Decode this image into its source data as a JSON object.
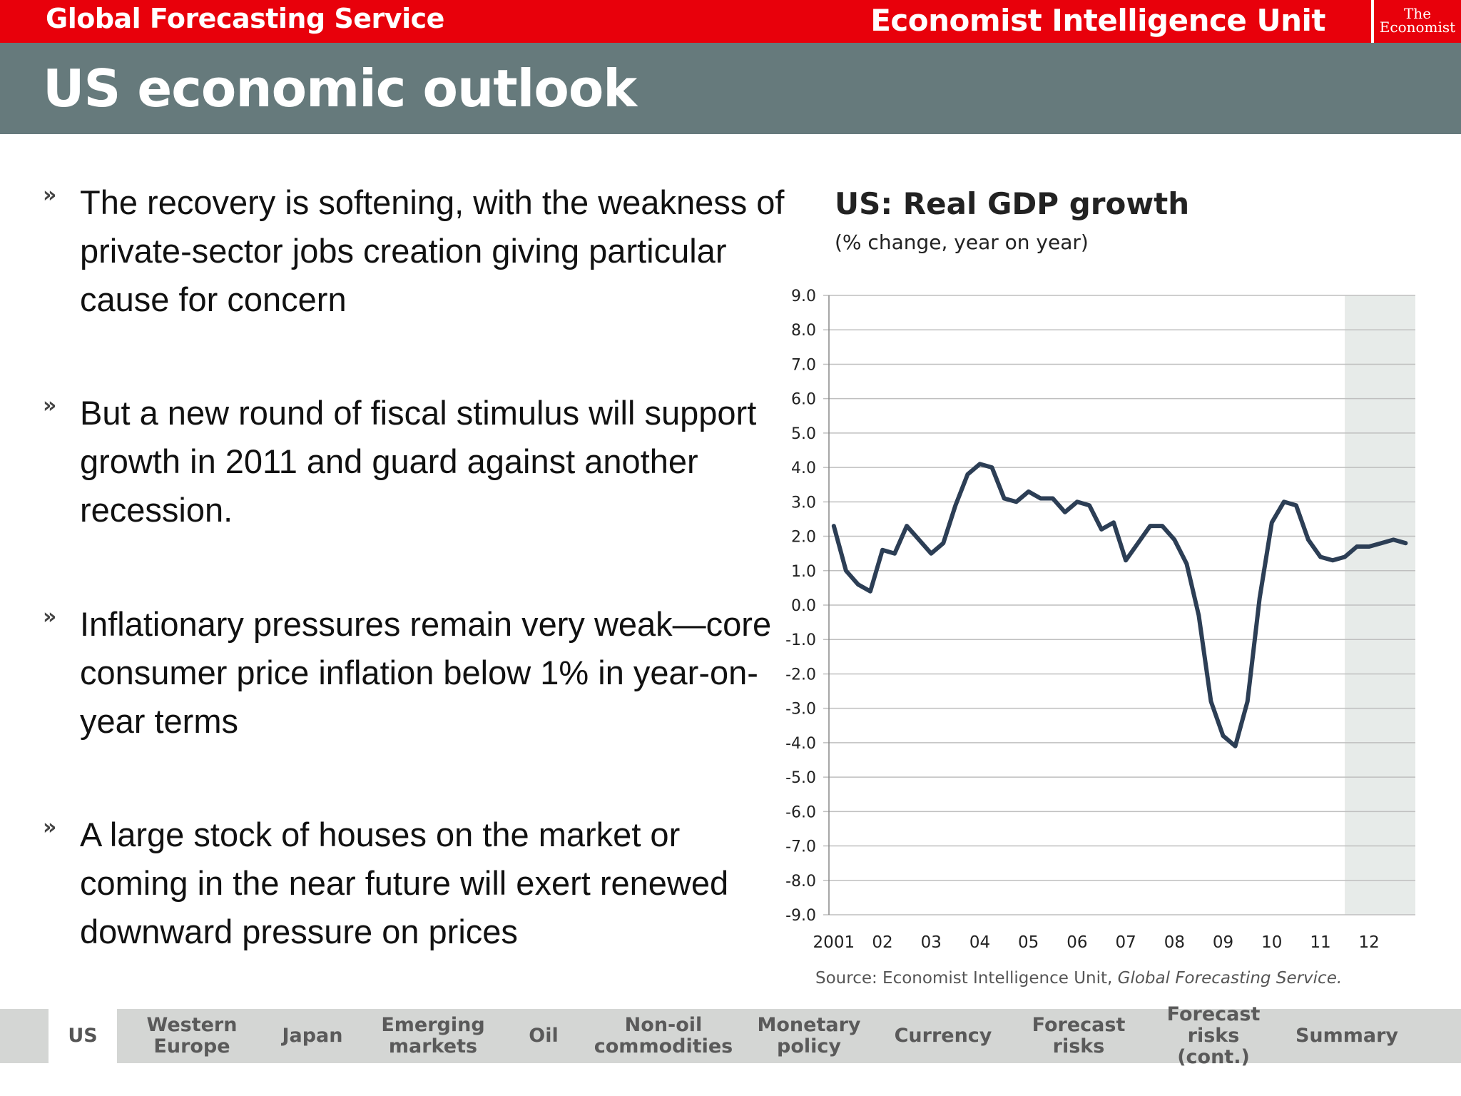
{
  "header": {
    "service": "Global Forecasting Service",
    "brand": "Economist Intelligence Unit",
    "logo_line1": "The",
    "logo_line2": "Economist"
  },
  "page_title": "US economic outlook",
  "bullets": [
    "The recovery is softening, with the weakness of private-sector jobs creation giving particular cause for concern",
    "But a new round of fiscal stimulus will support growth in 2011 and guard against another recession.",
    "Inflationary pressures remain very weak—core consumer price inflation below 1% in year-on-year terms",
    "A large stock of houses on the market or coming in the near future will exert renewed downward pressure on prices"
  ],
  "bullet_marker": "»",
  "chart_data": {
    "type": "line",
    "title": "US: Real GDP growth",
    "subtitle": "(% change, year on year)",
    "source_prefix": "Source: Economist Intelligence Unit, ",
    "source_italic": "Global Forecasting Service.",
    "ylim": [
      -9,
      9
    ],
    "yticks": [
      "9.0",
      "8.0",
      "7.0",
      "6.0",
      "5.0",
      "4.0",
      "3.0",
      "2.0",
      "1.0",
      "0.0",
      "-1.0",
      "-2.0",
      "-3.0",
      "-4.0",
      "-5.0",
      "-6.0",
      "-7.0",
      "-8.0",
      "-9.0"
    ],
    "xtick_labels": [
      "2001",
      "02",
      "03",
      "04",
      "05",
      "06",
      "07",
      "08",
      "09",
      "10",
      "11",
      "12"
    ],
    "grid": "horizontal",
    "forecast_shading_from": 2011.5,
    "colors": {
      "line": "#2c3e55",
      "forecast_band": "#e7ebe9",
      "grid": "#bfbfbf"
    },
    "series": [
      {
        "x": [
          2001.0,
          2001.25,
          2001.5,
          2001.75,
          2002.0,
          2002.25,
          2002.5,
          2002.75,
          2003.0,
          2003.25,
          2003.5,
          2003.75,
          2004.0,
          2004.25,
          2004.5,
          2004.75,
          2005.0,
          2005.25,
          2005.5,
          2005.75,
          2006.0,
          2006.25,
          2006.5,
          2006.75,
          2007.0,
          2007.25,
          2007.5,
          2007.75,
          2008.0,
          2008.25,
          2008.5,
          2008.75,
          2009.0,
          2009.25,
          2009.5,
          2009.75,
          2010.0,
          2010.25,
          2010.5,
          2010.75,
          2011.0,
          2011.25,
          2011.5,
          2011.75,
          2012.0,
          2012.25,
          2012.5,
          2012.75
        ],
        "y": [
          2.3,
          1.0,
          0.6,
          0.4,
          1.6,
          1.5,
          2.3,
          1.9,
          1.5,
          1.8,
          2.9,
          3.8,
          4.1,
          4.0,
          3.1,
          3.0,
          3.3,
          3.1,
          3.1,
          2.7,
          3.0,
          2.9,
          2.2,
          2.4,
          1.3,
          1.8,
          2.3,
          2.3,
          1.9,
          1.2,
          -0.3,
          -2.8,
          -3.8,
          -4.1,
          -2.8,
          0.2,
          2.4,
          3.0,
          2.9,
          1.9,
          1.4,
          1.3,
          1.4,
          1.7,
          1.7,
          1.8,
          1.9,
          1.8
        ]
      }
    ]
  },
  "nav": [
    {
      "label": "US",
      "active": true
    },
    {
      "label": "Western\nEurope",
      "active": false
    },
    {
      "label": "Japan",
      "active": false
    },
    {
      "label": "Emerging\nmarkets",
      "active": false
    },
    {
      "label": "Oil",
      "active": false
    },
    {
      "label": "Non-oil\ncommodities",
      "active": false
    },
    {
      "label": "Monetary\npolicy",
      "active": false
    },
    {
      "label": "Currency",
      "active": false
    },
    {
      "label": "Forecast\nrisks",
      "active": false
    },
    {
      "label": "Forecast\nrisks (cont.)",
      "active": false
    },
    {
      "label": "Summary",
      "active": false
    }
  ]
}
